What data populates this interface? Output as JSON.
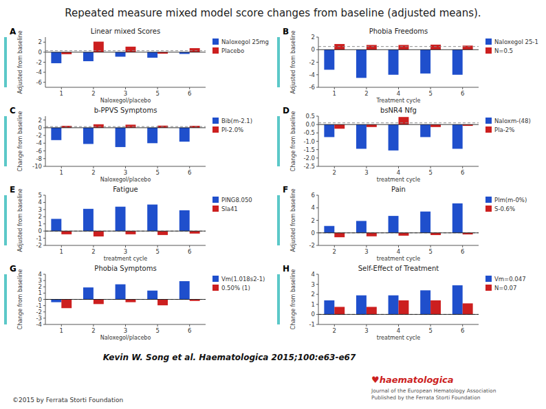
{
  "title": "Repeated measure mixed model score changes from baseline (adjusted means).",
  "annotations": [
    "Kevin W. Song et al. Haematologica 2015;100:e63-e67",
    "©2015 by Ferrata Storti Foundation",
    "♥haematologica",
    "Journal of the European Hematology Association\nPublished by the Ferrata Storti Foundation"
  ],
  "chart_data": [
    {
      "type": "bar",
      "title": "Linear mixed Scores",
      "x_label": "Naloxegol/placebo",
      "y_label": "Adjusted from baseline",
      "annotations": [
        "A"
      ],
      "categories": [
        "1",
        "2",
        "3",
        "5",
        "6"
      ],
      "series": [
        {
          "name": "Naloxegol 25mg",
          "color": "#1f4fcc",
          "values": [
            -2.2,
            -1.8,
            -0.9,
            -1.1,
            -0.35
          ]
        },
        {
          "name": "Placebo",
          "color": "#cc1f1f",
          "values": [
            -0.4,
            2.1,
            1.1,
            -0.3,
            0.8
          ]
        }
      ],
      "ylim": [
        -7,
        3
      ],
      "yticks": [
        -6,
        -4,
        -2,
        0,
        2
      ],
      "reference_line": 0.3,
      "grid": false,
      "legend": "upper right"
    },
    {
      "type": "bar",
      "title": "Phobia Freedoms",
      "x_label": "Treatment cycle",
      "y_label": "Adjusted from baseline",
      "annotations": [
        "B"
      ],
      "categories": [
        "1",
        "2",
        "4",
        "5",
        "6"
      ],
      "series": [
        {
          "name": "Naloxegol 25-1",
          "color": "#1f4fcc",
          "values": [
            -3.2,
            -4.5,
            -4.0,
            -3.8,
            -4.0
          ]
        },
        {
          "name": "N=0.5",
          "color": "#cc1f1f",
          "values": [
            0.9,
            0.75,
            0.75,
            0.8,
            0.65
          ]
        }
      ],
      "ylim": [
        -6,
        2
      ],
      "yticks": [
        -6,
        -4,
        -2,
        0,
        2
      ],
      "reference_line": 0.5,
      "grid": false,
      "legend": "upper right"
    },
    {
      "type": "bar",
      "title": "b-PPVS Symptoms",
      "x_label": "Naloxegol/placebo",
      "y_label": "Change from baseline",
      "annotations": [
        "C"
      ],
      "categories": [
        "1",
        "2",
        "3",
        "5",
        "6"
      ],
      "series": [
        {
          "name": "Bib(m-2.1)",
          "color": "#1f4fcc",
          "values": [
            -3.2,
            -4.2,
            -5.0,
            -4.0,
            -3.6
          ]
        },
        {
          "name": "Pl-2.0%",
          "color": "#cc1f1f",
          "values": [
            0.5,
            0.9,
            0.8,
            0.55,
            0.5
          ]
        }
      ],
      "ylim": [
        -10,
        3
      ],
      "yticks": [
        -10,
        -8,
        -6,
        -4,
        -2,
        0,
        2
      ],
      "reference_line": 0.3,
      "grid": false,
      "legend": "upper right"
    },
    {
      "type": "bar",
      "title": "bsNR4 Nfg",
      "x_label": "treatment cycle",
      "y_label": "Change from baseline",
      "annotations": [
        "D"
      ],
      "categories": [
        "2",
        "3",
        "4",
        "5",
        "6"
      ],
      "series": [
        {
          "name": "Naloxm-(48)",
          "color": "#1f4fcc",
          "values": [
            -0.75,
            -1.45,
            -1.55,
            -0.75,
            -1.45
          ]
        },
        {
          "name": "Pla-2%",
          "color": "#cc1f1f",
          "values": [
            -0.25,
            -0.15,
            0.45,
            -0.15,
            -0.08
          ]
        }
      ],
      "ylim": [
        -2.5,
        0.5
      ],
      "yticks": [
        -2.5,
        {
          "value": -2,
          "label": "-2.0"
        },
        -1.5,
        {
          "value": -1,
          "label": "-1.0"
        },
        -0.5,
        {
          "value": 0,
          "label": "0.0"
        },
        0.5
      ],
      "reference_line": 0.1,
      "grid": false,
      "legend": "upper right"
    },
    {
      "type": "bar",
      "title": "Fatigue",
      "x_label": "treatment cycle",
      "y_label": "Adjusted from baseline",
      "annotations": [
        "E"
      ],
      "categories": [
        "1",
        "2",
        "3",
        "5",
        "6"
      ],
      "series": [
        {
          "name": "PlNG8.050",
          "color": "#1f4fcc",
          "values": [
            1.7,
            3.1,
            3.4,
            3.7,
            2.9
          ]
        },
        {
          "name": "Sla41",
          "color": "#cc1f1f",
          "values": [
            -0.45,
            -0.75,
            -0.45,
            -0.55,
            -0.35
          ]
        }
      ],
      "ylim": [
        -2,
        5
      ],
      "yticks": [
        -2,
        -1,
        0,
        1,
        2,
        3,
        4,
        5
      ],
      "reference_line": 0.0,
      "grid": false,
      "legend": "upper right"
    },
    {
      "type": "bar",
      "title": "Pain",
      "x_label": "treatment cycle",
      "y_label": "Adjusted from baseline",
      "annotations": [
        "F"
      ],
      "categories": [
        "2",
        "3",
        "4",
        "5",
        "6"
      ],
      "series": [
        {
          "name": "Plm(m-0%)",
          "color": "#1f4fcc",
          "values": [
            1.1,
            1.9,
            2.7,
            3.4,
            4.7
          ]
        },
        {
          "name": "S-0.6%",
          "color": "#cc1f1f",
          "values": [
            -0.7,
            -0.55,
            -0.45,
            -0.35,
            -0.25
          ]
        }
      ],
      "ylim": [
        -2,
        6
      ],
      "yticks": [
        -2,
        0,
        2,
        4,
        6
      ],
      "reference_line": 0.0,
      "grid": false,
      "legend": "upper right"
    },
    {
      "type": "bar",
      "title": "Phobia Symptoms",
      "x_label": "Naloxegol/placebo",
      "y_label": "Change from baseline",
      "annotations": [
        "G"
      ],
      "categories": [
        "1",
        "2",
        "3",
        "5",
        "6"
      ],
      "series": [
        {
          "name": "Vm(1.018s2-1)",
          "color": "#1f4fcc",
          "values": [
            -0.45,
            1.9,
            2.4,
            1.4,
            2.9
          ]
        },
        {
          "name": "0.50% (1)",
          "color": "#cc1f1f",
          "values": [
            -1.4,
            -0.75,
            -0.45,
            -0.95,
            -0.25
          ]
        }
      ],
      "ylim": [
        -4,
        4
      ],
      "yticks": [
        -4,
        -3,
        -2,
        -1,
        0,
        1,
        2,
        3,
        4
      ],
      "reference_line": 0.0,
      "grid": false,
      "legend": "upper right"
    },
    {
      "type": "bar",
      "title": "Self-Effect of Treatment",
      "x_label": "treatment cycle",
      "y_label": "Change from baseline",
      "annotations": [
        "H"
      ],
      "categories": [
        "2",
        "3",
        "4",
        "5",
        "6"
      ],
      "series": [
        {
          "name": "Vm=0.047",
          "color": "#1f4fcc",
          "values": [
            1.4,
            1.9,
            1.9,
            2.4,
            2.9
          ]
        },
        {
          "name": "N=0.07",
          "color": "#cc1f1f",
          "values": [
            0.75,
            0.75,
            1.4,
            1.4,
            1.1
          ]
        }
      ],
      "ylim": [
        -1,
        4
      ],
      "yticks": [
        -1,
        0,
        1,
        2,
        3,
        4
      ],
      "reference_line": 0.0,
      "grid": false,
      "legend": "upper right"
    }
  ]
}
